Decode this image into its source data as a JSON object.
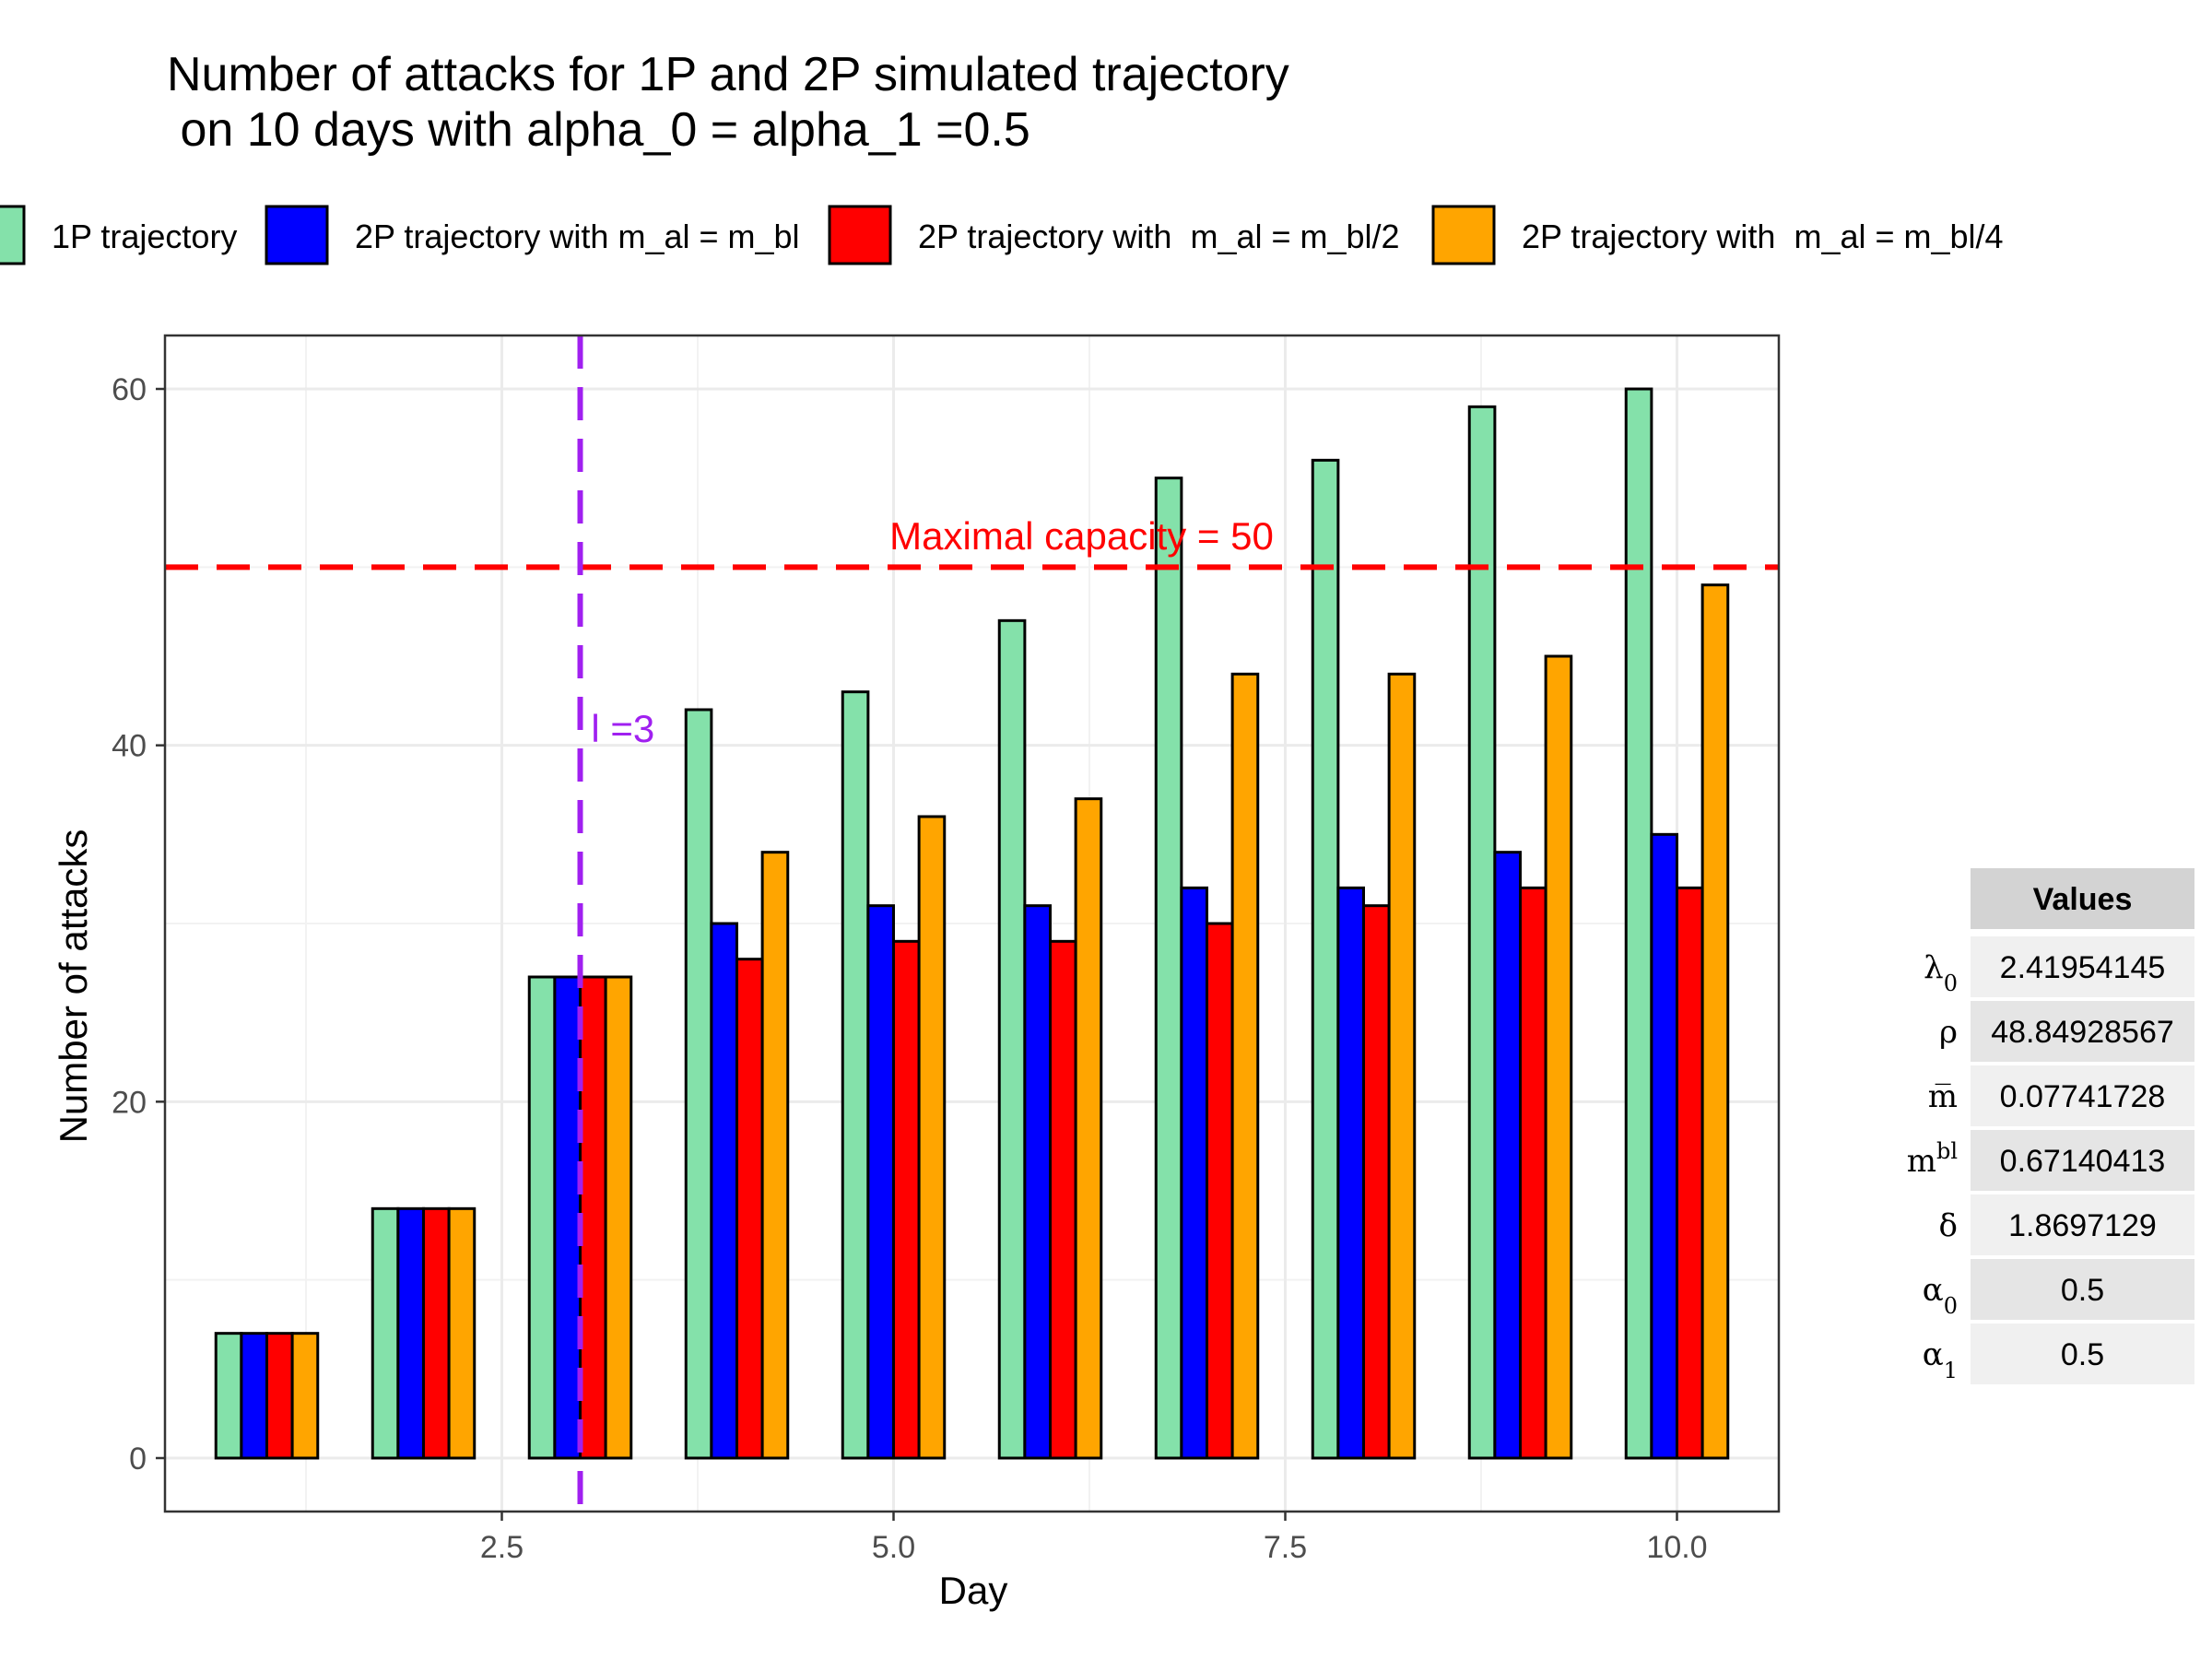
{
  "chart_data": {
    "type": "bar",
    "title_lines": [
      "Number of attacks for 1P and 2P simulated trajectory",
      " on 10 days with alpha_0 = alpha_1 =0.5"
    ],
    "xlabel": "Day",
    "ylabel": "Number of attacks",
    "xlim": [
      0.35,
      10.65
    ],
    "ylim": [
      -3,
      63
    ],
    "x_ticks": [
      2.5,
      5.0,
      7.5,
      10.0
    ],
    "x_tick_labels": [
      "2.5",
      "5.0",
      "7.5",
      "10.0"
    ],
    "y_ticks": [
      0,
      20,
      40,
      60
    ],
    "y_tick_labels": [
      "0",
      "20",
      "40",
      "60"
    ],
    "grid": true,
    "legend_position": "top",
    "categories": [
      1,
      2,
      3,
      4,
      5,
      6,
      7,
      8,
      9,
      10
    ],
    "series": [
      {
        "name": "1P trajectory",
        "color": "#84e1aa",
        "values": [
          7,
          14,
          27,
          42,
          43,
          47,
          55,
          56,
          59,
          60
        ]
      },
      {
        "name": "2P trajectory with m_al = m_bl",
        "color": "#0000ff",
        "values": [
          7,
          14,
          27,
          30,
          31,
          31,
          32,
          32,
          34,
          35
        ]
      },
      {
        "name": "2P trajectory with  m_al = m_bl/2",
        "color": "#ff0000",
        "values": [
          7,
          14,
          27,
          28,
          29,
          29,
          30,
          31,
          32,
          32
        ]
      },
      {
        "name": "2P trajectory with  m_al = m_bl/4",
        "color": "#ffa500",
        "values": [
          7,
          14,
          27,
          34,
          36,
          37,
          44,
          44,
          45,
          49
        ]
      }
    ],
    "annotations": [
      {
        "type": "hline",
        "y": 50,
        "color": "#ff0000",
        "label": "Maximal capacity = 50",
        "label_x": 6.2,
        "label_y": 51
      },
      {
        "type": "vline",
        "x": 3,
        "color": "#a020f0",
        "label": "l =3",
        "label_x": 3.07,
        "label_y": 40.2
      }
    ],
    "table": {
      "header": "Values",
      "rows": [
        {
          "symbol": "λ",
          "sub": "0",
          "sup": "",
          "value": "2.41954145"
        },
        {
          "symbol": "ρ",
          "sub": "",
          "sup": "",
          "value": "48.84928567"
        },
        {
          "symbol": "m̅",
          "sub": "",
          "sup": "",
          "value": "0.07741728"
        },
        {
          "symbol": "m",
          "sub": "",
          "sup": "bl",
          "value": "0.67140413"
        },
        {
          "symbol": "δ",
          "sub": "",
          "sup": "",
          "value": "1.8697129"
        },
        {
          "symbol": "α",
          "sub": "0",
          "sup": "",
          "value": "0.5"
        },
        {
          "symbol": "α",
          "sub": "1",
          "sup": "",
          "value": "0.5"
        }
      ]
    }
  }
}
